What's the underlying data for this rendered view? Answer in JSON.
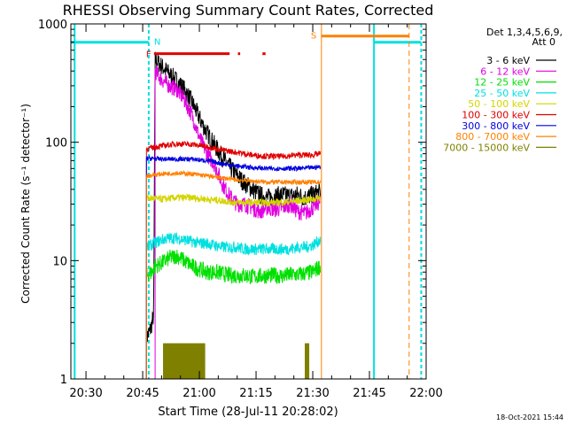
{
  "chart_data": {
    "type": "line",
    "title": "RHESSI Observing Summary Count Rates, Corrected",
    "xlabel": "Start Time (28-Jul-11 20:28:02)",
    "ylabel": "Corrected Count Rate (s⁻¹ detector⁻¹)",
    "y_scale": "log",
    "ylim": [
      1,
      1000
    ],
    "y_ticks": [
      {
        "value": 1,
        "label": "1"
      },
      {
        "value": 10,
        "label": "10"
      },
      {
        "value": 100,
        "label": "100"
      },
      {
        "value": 1000,
        "label": "1000"
      }
    ],
    "xlim_min": [
      -2,
      92
    ],
    "x_ticks": [
      {
        "value": 2,
        "label": "20:30"
      },
      {
        "value": 17,
        "label": "20:45"
      },
      {
        "value": 32,
        "label": "21:00"
      },
      {
        "value": 47,
        "label": "21:15"
      },
      {
        "value": 62,
        "label": "21:30"
      },
      {
        "value": 77,
        "label": "21:45"
      },
      {
        "value": 92,
        "label": "22:00"
      }
    ],
    "legend": {
      "placement": "right",
      "header": [
        "Det 1,3,4,5,6,9,",
        "Att 0"
      ],
      "entries": [
        {
          "label": "3 - 6 keV",
          "color": "#000000"
        },
        {
          "label": "6 - 12 keV",
          "color": "#e000e0"
        },
        {
          "label": "12 - 25 keV",
          "color": "#00e000"
        },
        {
          "label": "25 - 50 keV",
          "color": "#00e0e0"
        },
        {
          "label": "50 - 100 keV",
          "color": "#d4d400"
        },
        {
          "label": "100 - 300 keV",
          "color": "#e00000"
        },
        {
          "label": "300 - 800 keV",
          "color": "#0000e0"
        },
        {
          "label": "800 - 7000 keV",
          "color": "#ff8000"
        },
        {
          "label": "7000 - 15000 keV",
          "color": "#808000"
        }
      ]
    },
    "series": [
      {
        "name": "3 - 6 keV",
        "color": "#000000",
        "noise": 0.08,
        "start": 18,
        "points": [
          [
            18,
            2.2
          ],
          [
            19,
            2.6
          ],
          [
            19.5,
            3
          ],
          [
            19.9,
            3.5
          ],
          [
            20.3,
            500
          ],
          [
            22,
            440
          ],
          [
            24,
            380
          ],
          [
            26,
            330
          ],
          [
            28,
            280
          ],
          [
            30,
            220
          ],
          [
            32,
            160
          ],
          [
            34,
            120
          ],
          [
            36,
            95
          ],
          [
            38,
            75
          ],
          [
            40,
            62
          ],
          [
            42,
            52
          ],
          [
            44,
            45
          ],
          [
            46,
            40
          ],
          [
            48,
            36
          ],
          [
            50,
            34
          ],
          [
            52,
            35
          ],
          [
            54,
            36
          ],
          [
            56,
            35
          ],
          [
            58,
            36
          ],
          [
            60,
            34
          ],
          [
            62,
            36
          ],
          [
            64,
            38
          ]
        ]
      },
      {
        "name": "6 - 12 keV",
        "color": "#e000e0",
        "noise": 0.07,
        "start": 20.3,
        "points": [
          [
            20.3,
            400
          ],
          [
            22,
            340
          ],
          [
            24,
            300
          ],
          [
            26,
            280
          ],
          [
            28,
            230
          ],
          [
            30,
            170
          ],
          [
            32,
            110
          ],
          [
            34,
            80
          ],
          [
            36,
            65
          ],
          [
            38,
            45
          ],
          [
            40,
            35
          ],
          [
            42,
            30
          ],
          [
            44,
            30
          ],
          [
            46,
            28
          ],
          [
            48,
            26
          ],
          [
            50,
            28
          ],
          [
            52,
            27
          ],
          [
            54,
            28
          ],
          [
            56,
            30
          ],
          [
            58,
            26
          ],
          [
            60,
            25
          ],
          [
            62,
            28
          ],
          [
            64,
            32
          ]
        ]
      },
      {
        "name": "12 - 25 keV",
        "color": "#00e000",
        "noise": 0.07,
        "start": 18,
        "points": [
          [
            18,
            7.5
          ],
          [
            19.5,
            8
          ],
          [
            20.3,
            9
          ],
          [
            22,
            9.5
          ],
          [
            24,
            10.5
          ],
          [
            26,
            11
          ],
          [
            28,
            10
          ],
          [
            30,
            9
          ],
          [
            32,
            8.5
          ],
          [
            34,
            8
          ],
          [
            36,
            8
          ],
          [
            38,
            7.8
          ],
          [
            40,
            7.5
          ],
          [
            42,
            7.5
          ],
          [
            44,
            7.5
          ],
          [
            46,
            7.3
          ],
          [
            48,
            7.4
          ],
          [
            50,
            7.5
          ],
          [
            52,
            7.5
          ],
          [
            54,
            7.4
          ],
          [
            56,
            7.6
          ],
          [
            58,
            7.6
          ],
          [
            60,
            7.8
          ],
          [
            62,
            8
          ],
          [
            64,
            9
          ]
        ]
      },
      {
        "name": "25 - 50 keV",
        "color": "#00e0e0",
        "noise": 0.05,
        "start": 18,
        "points": [
          [
            18,
            13
          ],
          [
            20,
            14
          ],
          [
            22,
            15
          ],
          [
            24,
            15.5
          ],
          [
            26,
            15.5
          ],
          [
            28,
            15
          ],
          [
            30,
            14.5
          ],
          [
            32,
            14
          ],
          [
            34,
            14
          ],
          [
            36,
            13.5
          ],
          [
            38,
            13
          ],
          [
            40,
            13
          ],
          [
            42,
            13
          ],
          [
            44,
            12.5
          ],
          [
            46,
            12.5
          ],
          [
            48,
            12.5
          ],
          [
            50,
            12.5
          ],
          [
            52,
            12.5
          ],
          [
            54,
            12.5
          ],
          [
            56,
            12.5
          ],
          [
            58,
            13
          ],
          [
            60,
            13
          ],
          [
            62,
            13.5
          ],
          [
            64,
            15
          ]
        ]
      },
      {
        "name": "50 - 100 keV",
        "color": "#d4d400",
        "noise": 0.03,
        "start": 18,
        "points": [
          [
            18,
            34
          ],
          [
            22,
            33
          ],
          [
            26,
            34
          ],
          [
            30,
            34
          ],
          [
            34,
            33
          ],
          [
            38,
            32
          ],
          [
            42,
            31
          ],
          [
            46,
            31
          ],
          [
            50,
            31
          ],
          [
            54,
            31
          ],
          [
            58,
            32
          ],
          [
            62,
            33
          ],
          [
            64,
            34
          ]
        ]
      },
      {
        "name": "100 - 300 keV",
        "color": "#e00000",
        "noise": 0.025,
        "start": 18,
        "points": [
          [
            18,
            88
          ],
          [
            22,
            93
          ],
          [
            26,
            97
          ],
          [
            30,
            96
          ],
          [
            34,
            92
          ],
          [
            38,
            86
          ],
          [
            42,
            82
          ],
          [
            46,
            78
          ],
          [
            50,
            76
          ],
          [
            54,
            76
          ],
          [
            58,
            78
          ],
          [
            62,
            78
          ],
          [
            64,
            80
          ]
        ]
      },
      {
        "name": "300 - 800 keV",
        "color": "#0000e0",
        "noise": 0.02,
        "start": 18,
        "points": [
          [
            18,
            73
          ],
          [
            22,
            72
          ],
          [
            26,
            72
          ],
          [
            30,
            72
          ],
          [
            34,
            70
          ],
          [
            38,
            66
          ],
          [
            42,
            63
          ],
          [
            46,
            61
          ],
          [
            50,
            60
          ],
          [
            54,
            60
          ],
          [
            58,
            60
          ],
          [
            62,
            61
          ],
          [
            64,
            62
          ]
        ]
      },
      {
        "name": "800 - 7000 keV",
        "color": "#ff8000",
        "noise": 0.02,
        "start": 18,
        "points": [
          [
            18,
            52
          ],
          [
            22,
            54
          ],
          [
            26,
            55
          ],
          [
            30,
            54
          ],
          [
            34,
            52
          ],
          [
            38,
            50
          ],
          [
            42,
            48
          ],
          [
            46,
            47
          ],
          [
            50,
            46
          ],
          [
            54,
            46
          ],
          [
            58,
            46
          ],
          [
            62,
            46
          ],
          [
            64,
            46
          ]
        ]
      }
    ],
    "bursts_7000_15000": {
      "color": "#808000",
      "base": 1,
      "top": 2,
      "ranges": [
        [
          22.5,
          33.5
        ],
        [
          60,
          61
        ]
      ]
    },
    "intervals": {
      "saa": {
        "label": "S",
        "color": "#ff8000",
        "start": 64.3,
        "end_dashed": 87.5
      },
      "night": {
        "label": "N",
        "color": "#00e0e0",
        "level": 700,
        "ranges": [
          [
            -2,
            18.6
          ],
          [
            78.2,
            90.7
          ]
        ],
        "lines": [
          -1,
          18.6,
          78.2,
          90.7
        ]
      },
      "flare": {
        "label": "F",
        "color": "#e00000",
        "level": 560,
        "ranges": [
          [
            20,
            40
          ],
          [
            42.2,
            42.8
          ],
          [
            48.7,
            49.5
          ]
        ]
      }
    },
    "timestamp": "18-Oct-2021 15:44"
  }
}
